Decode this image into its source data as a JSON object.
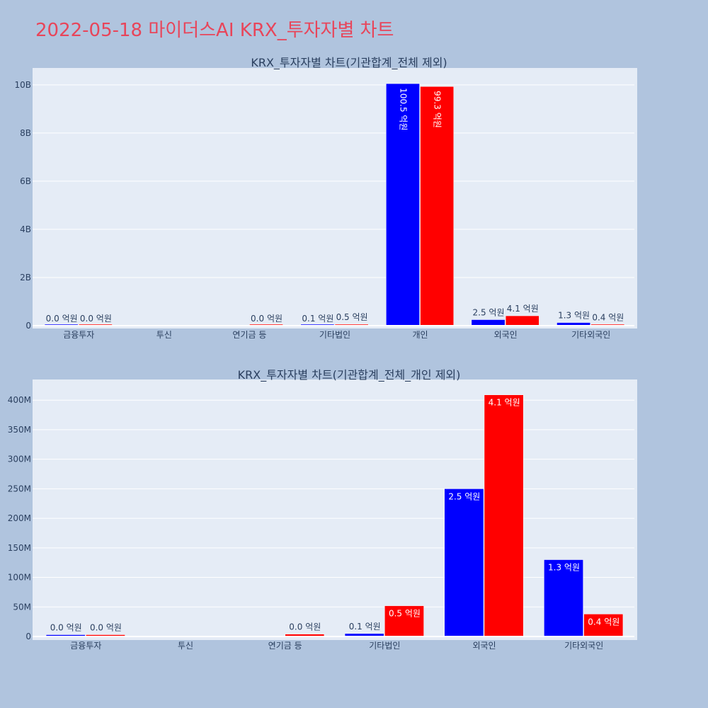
{
  "page": {
    "title": "2022-05-18 마이더스AI KRX_투자자별 차트"
  },
  "colors": {
    "background": "#b0c4de",
    "plot_background": "#e5ecf6",
    "grid": "#ffffff",
    "title": "#e8455a",
    "buy": "#0000ff",
    "sell": "#ff0000",
    "text": "#2a3f5f"
  },
  "chart_data": [
    {
      "type": "bar",
      "title": "KRX_투자자별 차트(기관합계_전체 제외)",
      "categories": [
        "금융투자",
        "투신",
        "연기금 등",
        "기타법인",
        "개인",
        "외국인",
        "기타외국인"
      ],
      "series": [
        {
          "color": "#0000ff",
          "values": [
            3000000,
            0,
            0,
            5000000,
            10050000000,
            250000000,
            130000000
          ],
          "labels": [
            "0.0 억원",
            "",
            "",
            "0.1 억원",
            "100.5 억원",
            "2.5 억원",
            "1.3 억원"
          ]
        },
        {
          "color": "#ff0000",
          "values": [
            3000000,
            0,
            4000000,
            52000000,
            9930000000,
            410000000,
            38000000
          ],
          "labels": [
            "0.0 억원",
            "",
            "0.0 억원",
            "0.5 억원",
            "99.3 억원",
            "4.1 억원",
            "0.4 억원"
          ]
        }
      ],
      "ylim": [
        0,
        10700000000
      ],
      "yticks": [
        0,
        2000000000,
        4000000000,
        6000000000,
        8000000000,
        10000000000
      ],
      "ytick_labels": [
        "0",
        "2B",
        "4B",
        "6B",
        "8B",
        "10B"
      ],
      "grid": true,
      "legend": "none"
    },
    {
      "type": "bar",
      "title": "KRX_투자자별 차트(기관합계_전체_개인 제외)",
      "categories": [
        "금융투자",
        "투신",
        "연기금 등",
        "기타법인",
        "외국인",
        "기타외국인"
      ],
      "series": [
        {
          "color": "#0000ff",
          "values": [
            3000000,
            0,
            0,
            5000000,
            250000000,
            130000000
          ],
          "labels": [
            "0.0 억원",
            "",
            "",
            "0.1 억원",
            "2.5 억원",
            "1.3 억원"
          ]
        },
        {
          "color": "#ff0000",
          "values": [
            3000000,
            0,
            4000000,
            52000000,
            409000000,
            38000000
          ],
          "labels": [
            "0.0 억원",
            "",
            "0.0 억원",
            "0.5 억원",
            "4.1 억원",
            "0.4 억원"
          ]
        }
      ],
      "ylim": [
        0,
        435000000
      ],
      "yticks": [
        0,
        50000000,
        100000000,
        150000000,
        200000000,
        250000000,
        300000000,
        350000000,
        400000000
      ],
      "ytick_labels": [
        "0",
        "50M",
        "100M",
        "150M",
        "200M",
        "250M",
        "300M",
        "350M",
        "400M"
      ],
      "grid": true,
      "legend": "none"
    }
  ]
}
